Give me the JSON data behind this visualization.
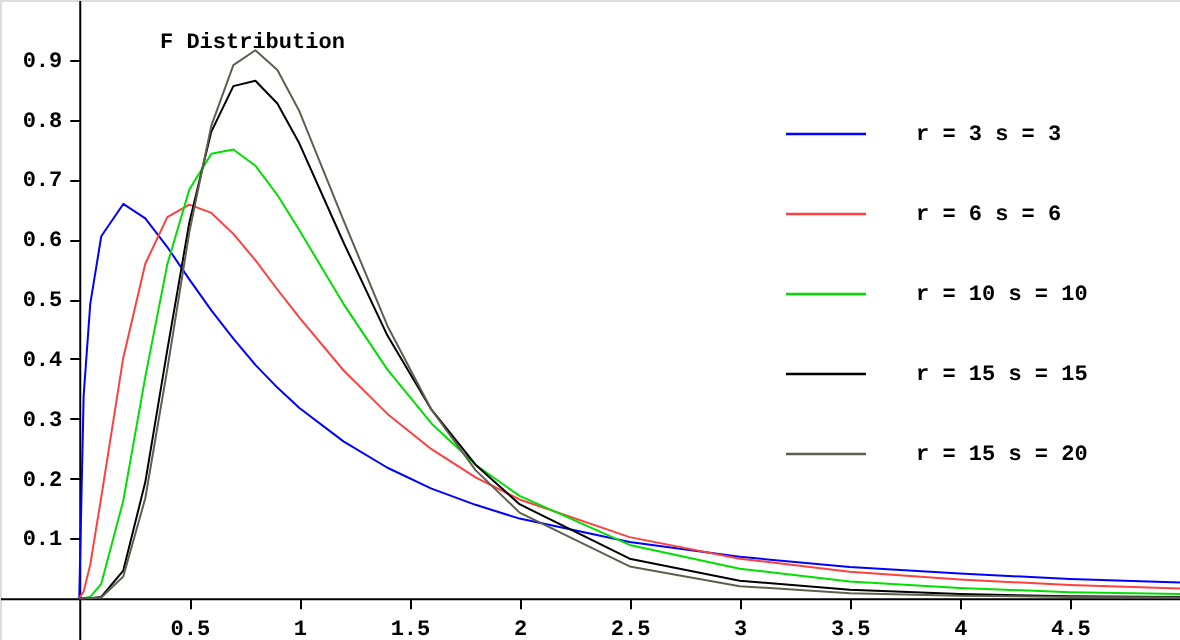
{
  "chart_data": {
    "type": "line",
    "title": "F Distribution",
    "x": [
      0,
      0.02,
      0.05,
      0.1,
      0.2,
      0.3,
      0.4,
      0.5,
      0.6,
      0.7,
      0.8,
      0.9,
      1.0,
      1.2,
      1.4,
      1.6,
      1.8,
      2.0,
      2.5,
      3,
      3.5,
      4,
      4.5,
      5
    ],
    "series": [
      {
        "name": "r = 3 s = 3",
        "color": "#0000ff",
        "values": [
          0,
          0.339,
          0.492,
          0.605,
          0.659,
          0.635,
          0.587,
          0.533,
          0.481,
          0.434,
          0.39,
          0.352,
          0.318,
          0.262,
          0.218,
          0.183,
          0.156,
          0.133,
          0.094,
          0.069,
          0.052,
          0.041,
          0.032,
          0.026
        ]
      },
      {
        "name": "r = 6 s = 6",
        "color": "#ff4040",
        "values": [
          0,
          0.011,
          0.056,
          0.169,
          0.402,
          0.559,
          0.637,
          0.658,
          0.644,
          0.609,
          0.565,
          0.516,
          0.469,
          0.381,
          0.308,
          0.249,
          0.202,
          0.165,
          0.102,
          0.066,
          0.044,
          0.031,
          0.022,
          0.016
        ]
      },
      {
        "name": "r = 10 s = 10",
        "color": "#00e000",
        "values": [
          0,
          0.0,
          0.002,
          0.024,
          0.163,
          0.37,
          0.558,
          0.683,
          0.743,
          0.75,
          0.723,
          0.674,
          0.615,
          0.492,
          0.382,
          0.292,
          0.223,
          0.171,
          0.089,
          0.049,
          0.028,
          0.017,
          0.01,
          0.007
        ]
      },
      {
        "name": "r = 15 s = 15",
        "color": "#000000",
        "values": [
          0,
          0.0,
          0.0,
          0.002,
          0.046,
          0.194,
          0.415,
          0.628,
          0.78,
          0.856,
          0.865,
          0.827,
          0.76,
          0.595,
          0.439,
          0.315,
          0.223,
          0.157,
          0.066,
          0.029,
          0.014,
          0.007,
          0.003,
          0.002
        ]
      },
      {
        "name": "r = 15 s = 20",
        "color": "#5f5f4f",
        "values": [
          0,
          0.0,
          0.0,
          0.001,
          0.036,
          0.167,
          0.383,
          0.612,
          0.79,
          0.891,
          0.916,
          0.883,
          0.814,
          0.632,
          0.455,
          0.315,
          0.214,
          0.143,
          0.053,
          0.02,
          0.008,
          0.004,
          0.002,
          0.001
        ]
      }
    ],
    "xlim": [
      -0.36,
      5.0
    ],
    "ylim": [
      -0.07,
      1.0
    ],
    "xticks": [
      0.5,
      1,
      1.5,
      2,
      2.5,
      3,
      3.5,
      4,
      4.5
    ],
    "yticks": [
      0.1,
      0.2,
      0.3,
      0.4,
      0.5,
      0.6,
      0.7,
      0.8,
      0.9
    ],
    "grid": false,
    "legend": "top right",
    "marker": "none",
    "line_style": "solid"
  }
}
